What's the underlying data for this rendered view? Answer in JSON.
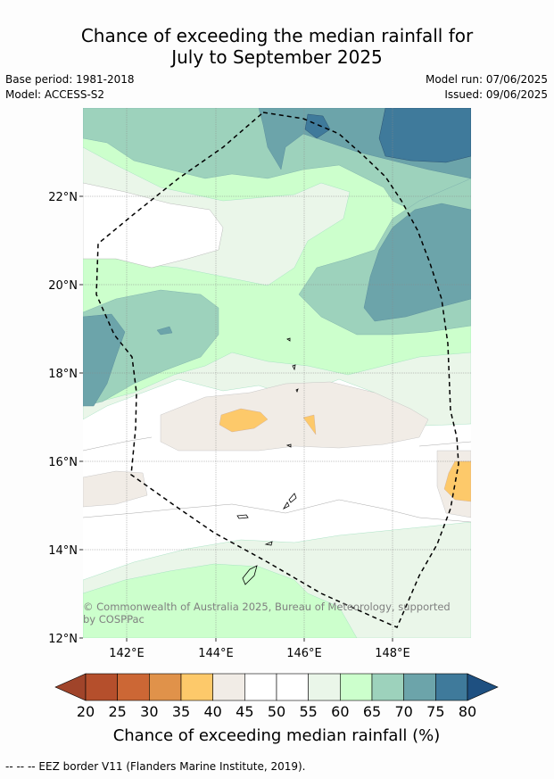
{
  "title_line1": "Chance of exceeding the median rainfall for",
  "title_line2": "July to September 2025",
  "meta": {
    "base_period": "Base period: 1981-2018",
    "model": "Model: ACCESS-S2",
    "model_run": "Model run: 07/06/2025",
    "issued": "Issued: 09/06/2025"
  },
  "map": {
    "lat_labels": [
      "22°N",
      "20°N",
      "18°N",
      "16°N",
      "14°N",
      "12°N"
    ],
    "lon_labels": [
      "142°E",
      "144°E",
      "146°E",
      "148°E"
    ],
    "copyright_line1": "© Commonwealth of Australia 2025, Bureau of Meteorology, supported",
    "copyright_line2": "by COSPPac",
    "eez_border": "dashed"
  },
  "colorbar": {
    "ticks": [
      "20",
      "25",
      "30",
      "35",
      "40",
      "45",
      "50",
      "55",
      "60",
      "65",
      "70",
      "75",
      "80"
    ],
    "colors": [
      "#a0442a",
      "#b54f2c",
      "#cc6735",
      "#e0924a",
      "#fdc96a",
      "#f1ece6",
      "#ffffff",
      "#ffffff",
      "#eaf6e9",
      "#ccffcc",
      "#9dd2bc",
      "#6ca4aa",
      "#3f7a9b",
      "#1e5081"
    ],
    "label": "Chance of exceeding median rainfall (%)"
  },
  "footer": "--  --  -- EEZ border V11 (Flanders Marine Institute, 2019)."
}
